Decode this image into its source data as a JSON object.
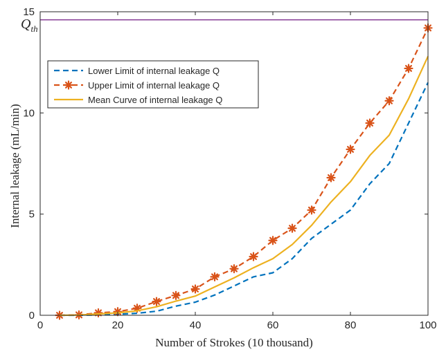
{
  "chart_data": {
    "type": "line",
    "xlabel": "Number of Strokes (10 thousand)",
    "ylabel": "Internal leakage (mL/min)",
    "xlim": [
      0,
      100
    ],
    "ylim": [
      0,
      15
    ],
    "xticks": [
      0,
      20,
      40,
      60,
      80,
      100
    ],
    "yticks": [
      0,
      5,
      10,
      15
    ],
    "grid": false,
    "legend_position": "upper-left",
    "threshold": {
      "label": "Q",
      "subscript": "th",
      "value": 14.6,
      "color": "#7e2f8e"
    },
    "series": [
      {
        "name": "Lower Limit of internal leakage Q",
        "style": "dashed",
        "color": "#0072bd",
        "x": [
          5,
          10,
          15,
          20,
          25,
          30,
          35,
          40,
          45,
          50,
          55,
          60,
          65,
          70,
          75,
          80,
          85,
          90,
          95,
          100
        ],
        "y": [
          0.0,
          0.0,
          0.02,
          0.05,
          0.1,
          0.2,
          0.45,
          0.65,
          1.0,
          1.45,
          1.9,
          2.1,
          2.8,
          3.8,
          4.5,
          5.2,
          6.5,
          7.5,
          9.5,
          11.5
        ]
      },
      {
        "name": "Upper Limit of internal leakage Q",
        "style": "dashed-markers",
        "color": "#d95319",
        "x": [
          5,
          10,
          15,
          20,
          25,
          30,
          35,
          40,
          45,
          50,
          55,
          60,
          65,
          70,
          75,
          80,
          85,
          90,
          95,
          100
        ],
        "y": [
          0.0,
          0.02,
          0.12,
          0.18,
          0.35,
          0.68,
          0.98,
          1.3,
          1.9,
          2.3,
          2.9,
          3.7,
          4.3,
          5.2,
          6.8,
          8.2,
          9.5,
          10.6,
          12.2,
          14.2
        ]
      },
      {
        "name": "Mean Curve of internal leakage Q",
        "style": "solid",
        "color": "#edb120",
        "x": [
          5,
          10,
          15,
          20,
          25,
          30,
          35,
          40,
          45,
          50,
          55,
          60,
          65,
          70,
          75,
          80,
          85,
          90,
          95,
          100
        ],
        "y": [
          0.0,
          0.01,
          0.07,
          0.12,
          0.22,
          0.42,
          0.7,
          0.95,
          1.4,
          1.85,
          2.35,
          2.8,
          3.5,
          4.45,
          5.6,
          6.6,
          7.9,
          8.9,
          10.7,
          12.8
        ]
      }
    ]
  }
}
